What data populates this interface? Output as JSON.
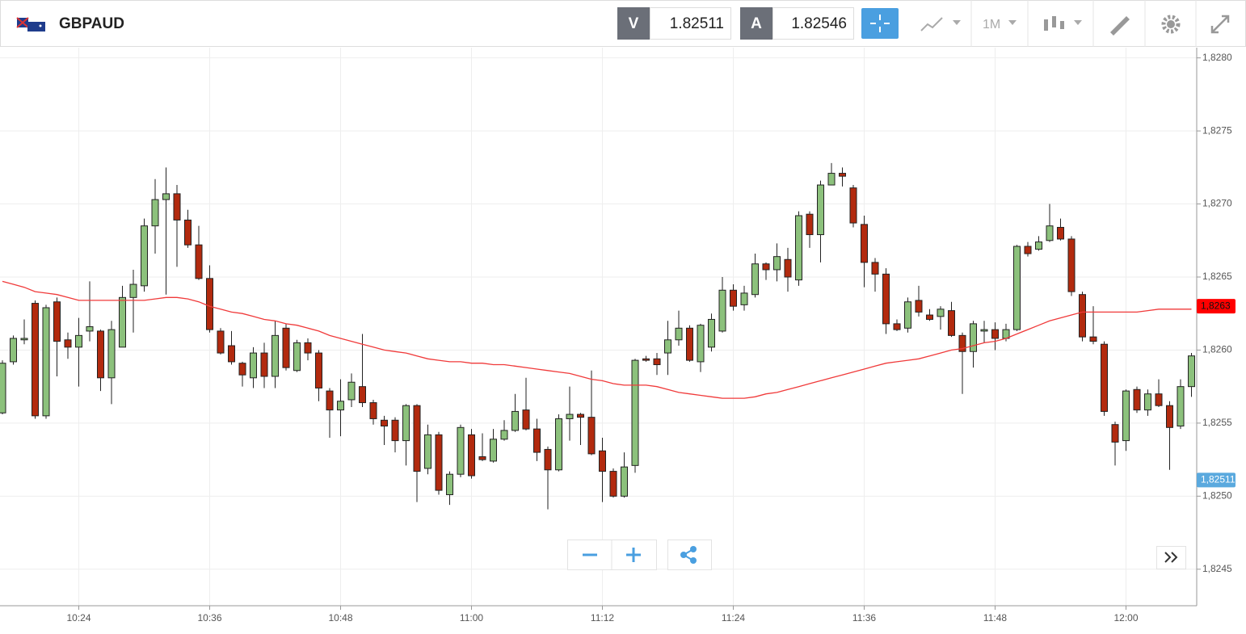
{
  "header": {
    "symbol": "GBPAUD",
    "sell_label": "V",
    "sell_price": "1.82511",
    "buy_label": "A",
    "buy_price": "1.82546",
    "timeframe": "1M"
  },
  "chart_data": {
    "type": "candlestick",
    "x": [
      "10:17",
      "10:18",
      "10:19",
      "10:20",
      "10:21",
      "10:22",
      "10:23",
      "10:24",
      "10:25",
      "10:26",
      "10:27",
      "10:28",
      "10:29",
      "10:30",
      "10:31",
      "10:32",
      "10:33",
      "10:34",
      "10:35",
      "10:36",
      "10:37",
      "10:38",
      "10:39",
      "10:40",
      "10:41",
      "10:42",
      "10:43",
      "10:44",
      "10:45",
      "10:46",
      "10:47",
      "10:48",
      "10:49",
      "10:50",
      "10:51",
      "10:52",
      "10:53",
      "10:54",
      "10:55",
      "10:56",
      "10:57",
      "10:58",
      "10:59",
      "11:00",
      "11:01",
      "11:02",
      "11:03",
      "11:04",
      "11:05",
      "11:06",
      "11:07",
      "11:08",
      "11:09",
      "11:10",
      "11:11",
      "11:12",
      "11:13",
      "11:14",
      "11:15",
      "11:16",
      "11:17",
      "11:18",
      "11:19",
      "11:20",
      "11:21",
      "11:22",
      "11:23",
      "11:24",
      "11:25",
      "11:26",
      "11:27",
      "11:28",
      "11:29",
      "11:30",
      "11:31",
      "11:32",
      "11:33",
      "11:34",
      "11:35",
      "11:36",
      "11:37",
      "11:38",
      "11:39",
      "11:40",
      "11:41",
      "11:42",
      "11:43",
      "11:44",
      "11:45",
      "11:46",
      "11:47",
      "11:48",
      "11:49",
      "11:50",
      "11:51",
      "11:52",
      "11:53",
      "11:54",
      "11:55",
      "11:56",
      "11:57",
      "11:58",
      "11:59",
      "12:00",
      "12:01",
      "12:02",
      "12:03",
      "12:04",
      "12:05",
      "12:06"
    ],
    "open": [
      1.82557,
      1.82592,
      1.82607,
      1.82632,
      1.82555,
      1.82633,
      1.82607,
      1.82602,
      1.82613,
      1.82613,
      1.82581,
      1.82602,
      1.82636,
      1.82644,
      1.82685,
      1.82703,
      1.82707,
      1.82689,
      1.82672,
      1.82649,
      1.82613,
      1.82603,
      1.82591,
      1.82581,
      1.82598,
      1.82582,
      1.82615,
      1.82586,
      1.82605,
      1.82598,
      1.82572,
      1.82559,
      1.82566,
      1.82575,
      1.82564,
      1.82552,
      1.82552,
      1.82538,
      1.82562,
      1.82519,
      1.82542,
      1.82501,
      1.82515,
      1.82542,
      1.82527,
      1.82524,
      1.82539,
      1.82545,
      1.82559,
      1.82546,
      1.82532,
      1.82518,
      1.82553,
      1.82556,
      1.82554,
      1.82531,
      1.82517,
      1.825,
      1.82521,
      1.82594,
      1.82594,
      1.82598,
      1.82607,
      1.82615,
      1.82592,
      1.82602,
      1.82613,
      1.82641,
      1.82631,
      1.82638,
      1.82659,
      1.82655,
      1.82662,
      1.82648,
      1.82693,
      1.82679,
      1.82713,
      1.82721,
      1.82711,
      1.82686,
      1.8266,
      1.82652,
      1.82618,
      1.82615,
      1.82634,
      1.82624,
      1.82623,
      1.82627,
      1.8261,
      1.82599,
      1.82613,
      1.82614,
      1.82608,
      1.82614,
      1.82671,
      1.82669,
      1.82675,
      1.82684,
      1.82676,
      1.82638,
      1.82609,
      1.82604,
      1.82549,
      1.82538,
      1.82573,
      1.82559,
      1.8257,
      1.82562,
      1.82548,
      1.82575
    ],
    "high": [
      1.82593,
      1.8261,
      1.82621,
      1.82634,
      1.82631,
      1.82636,
      1.82612,
      1.82622,
      1.82647,
      1.82614,
      1.8262,
      1.82644,
      1.82655,
      1.8269,
      1.82717,
      1.82725,
      1.82713,
      1.82696,
      1.82685,
      1.82658,
      1.82615,
      1.82613,
      1.82592,
      1.82602,
      1.82605,
      1.8262,
      1.82618,
      1.82607,
      1.82608,
      1.826,
      1.82574,
      1.8258,
      1.82584,
      1.82611,
      1.82566,
      1.82555,
      1.82554,
      1.82563,
      1.82563,
      1.82549,
      1.82544,
      1.82517,
      1.82549,
      1.82546,
      1.82543,
      1.82546,
      1.82552,
      1.8257,
      1.82581,
      1.82553,
      1.82534,
      1.82556,
      1.82575,
      1.82557,
      1.82586,
      1.8254,
      1.82519,
      1.8253,
      1.82594,
      1.82596,
      1.82598,
      1.8262,
      1.82627,
      1.82617,
      1.82618,
      1.82625,
      1.8265,
      1.82645,
      1.82644,
      1.82666,
      1.8266,
      1.82673,
      1.8267,
      1.82695,
      1.82695,
      1.82716,
      1.82728,
      1.82725,
      1.82713,
      1.82692,
      1.82663,
      1.82656,
      1.82621,
      1.82636,
      1.82644,
      1.82628,
      1.8263,
      1.82633,
      1.82612,
      1.8262,
      1.8262,
      1.82619,
      1.82618,
      1.82672,
      1.82674,
      1.82678,
      1.827,
      1.8269,
      1.82678,
      1.8264,
      1.8263,
      1.82606,
      1.82551,
      1.82573,
      1.82575,
      1.82573,
      1.8258,
      1.82565,
      1.8258,
      1.82598
    ],
    "low": [
      1.82556,
      1.8259,
      1.82604,
      1.82553,
      1.82553,
      1.82582,
      1.82594,
      1.82575,
      1.82606,
      1.82572,
      1.82563,
      1.82602,
      1.82612,
      1.8264,
      1.82666,
      1.82638,
      1.82657,
      1.8267,
      1.82648,
      1.82612,
      1.82597,
      1.8259,
      1.82575,
      1.82574,
      1.82574,
      1.82574,
      1.82586,
      1.82585,
      1.82593,
      1.82565,
      1.8254,
      1.82541,
      1.82561,
      1.82561,
      1.82549,
      1.82535,
      1.8253,
      1.82521,
      1.82496,
      1.82515,
      1.82501,
      1.82494,
      1.82513,
      1.82512,
      1.82524,
      1.82523,
      1.82538,
      1.82544,
      1.82545,
      1.82524,
      1.82491,
      1.82517,
      1.82538,
      1.82535,
      1.82528,
      1.82496,
      1.82499,
      1.82499,
      1.82516,
      1.82592,
      1.82583,
      1.82583,
      1.82603,
      1.82592,
      1.82585,
      1.82599,
      1.82612,
      1.82627,
      1.82627,
      1.82636,
      1.82648,
      1.82647,
      1.8264,
      1.82644,
      1.8267,
      1.8266,
      1.82713,
      1.82712,
      1.82684,
      1.82643,
      1.8264,
      1.82611,
      1.82613,
      1.82612,
      1.82623,
      1.8262,
      1.82614,
      1.82609,
      1.8257,
      1.82588,
      1.82605,
      1.826,
      1.82606,
      1.82613,
      1.82664,
      1.82668,
      1.82674,
      1.82675,
      1.82637,
      1.82606,
      1.82604,
      1.82555,
      1.82521,
      1.82531,
      1.82557,
      1.82555,
      1.82561,
      1.82518,
      1.82546,
      1.82568
    ],
    "close": [
      1.82591,
      1.82608,
      1.82608,
      1.82555,
      1.82629,
      1.82606,
      1.82602,
      1.8261,
      1.82616,
      1.82581,
      1.82614,
      1.82636,
      1.82645,
      1.82685,
      1.82703,
      1.82707,
      1.82689,
      1.82672,
      1.82649,
      1.82614,
      1.82598,
      1.82592,
      1.82583,
      1.82598,
      1.82582,
      1.8261,
      1.82588,
      1.82605,
      1.82598,
      1.82574,
      1.82559,
      1.82565,
      1.82578,
      1.82564,
      1.82553,
      1.82548,
      1.82538,
      1.82562,
      1.82517,
      1.82542,
      1.82504,
      1.82515,
      1.82547,
      1.82514,
      1.82525,
      1.82539,
      1.82545,
      1.82558,
      1.82546,
      1.8253,
      1.82518,
      1.82553,
      1.82556,
      1.82554,
      1.82529,
      1.82517,
      1.825,
      1.8252,
      1.82593,
      1.82593,
      1.8259,
      1.82607,
      1.82615,
      1.82593,
      1.82617,
      1.82621,
      1.82641,
      1.8263,
      1.82639,
      1.82659,
      1.82655,
      1.82664,
      1.8265,
      1.82692,
      1.82679,
      1.82713,
      1.82721,
      1.82719,
      1.82687,
      1.8266,
      1.82652,
      1.82618,
      1.82614,
      1.82633,
      1.82626,
      1.82621,
      1.82628,
      1.8261,
      1.82599,
      1.82618,
      1.82614,
      1.82608,
      1.82614,
      1.82671,
      1.82666,
      1.82674,
      1.82685,
      1.82676,
      1.8264,
      1.82609,
      1.82606,
      1.82558,
      1.82537,
      1.82572,
      1.82559,
      1.8257,
      1.82562,
      1.82547,
      1.82575,
      1.82596
    ],
    "up_color": "#8cc17c",
    "down_color": "#b22a0e",
    "ma": {
      "color": "#f03a3a",
      "values": [
        1.82647,
        1.82645,
        1.82643,
        1.8264,
        1.82639,
        1.82638,
        1.82636,
        1.82634,
        1.82634,
        1.82634,
        1.82634,
        1.82634,
        1.82634,
        1.82634,
        1.82635,
        1.82636,
        1.82636,
        1.82635,
        1.82633,
        1.8263,
        1.82628,
        1.82626,
        1.82625,
        1.82623,
        1.82621,
        1.8262,
        1.82618,
        1.82617,
        1.82615,
        1.82613,
        1.8261,
        1.82608,
        1.82606,
        1.82604,
        1.82602,
        1.826,
        1.82599,
        1.82598,
        1.82596,
        1.82594,
        1.82593,
        1.82592,
        1.82592,
        1.82591,
        1.82591,
        1.8259,
        1.8259,
        1.82589,
        1.82588,
        1.82587,
        1.82586,
        1.82585,
        1.82584,
        1.82582,
        1.8258,
        1.82579,
        1.82577,
        1.82576,
        1.82576,
        1.82576,
        1.82575,
        1.82573,
        1.82571,
        1.8257,
        1.82569,
        1.82568,
        1.82567,
        1.82567,
        1.82567,
        1.82568,
        1.8257,
        1.82571,
        1.82573,
        1.82575,
        1.82577,
        1.82579,
        1.82581,
        1.82583,
        1.82585,
        1.82587,
        1.82589,
        1.82591,
        1.82592,
        1.82593,
        1.82594,
        1.82596,
        1.82598,
        1.826,
        1.82601,
        1.82603,
        1.82605,
        1.82606,
        1.82608,
        1.82611,
        1.82614,
        1.82617,
        1.8262,
        1.82622,
        1.82624,
        1.82626,
        1.82626,
        1.82626,
        1.82626,
        1.82626,
        1.82626,
        1.82627,
        1.82628,
        1.82628,
        1.82628,
        1.82628
      ]
    },
    "price_markers": [
      {
        "value": 1.8263,
        "label": "1,8263",
        "color": "#ff0000"
      },
      {
        "value": 1.82511,
        "label": "1,82511",
        "color": "#5aa9de"
      }
    ],
    "ylim": [
      1.82425,
      1.82807
    ],
    "yticks": [
      {
        "value": 1.8245,
        "label": "1,8245"
      },
      {
        "value": 1.825,
        "label": "1,8250"
      },
      {
        "value": 1.8255,
        "label": "1,8255"
      },
      {
        "value": 1.826,
        "label": "1,8260"
      },
      {
        "value": 1.8265,
        "label": "1,8265"
      },
      {
        "value": 1.827,
        "label": "1,8270"
      },
      {
        "value": 1.8275,
        "label": "1,8275"
      },
      {
        "value": 1.828,
        "label": "1,8280"
      }
    ],
    "xticks": [
      "10:24",
      "10:36",
      "10:48",
      "11:00",
      "11:12",
      "11:24",
      "11:36",
      "11:48",
      "12:00"
    ],
    "grid": true
  }
}
